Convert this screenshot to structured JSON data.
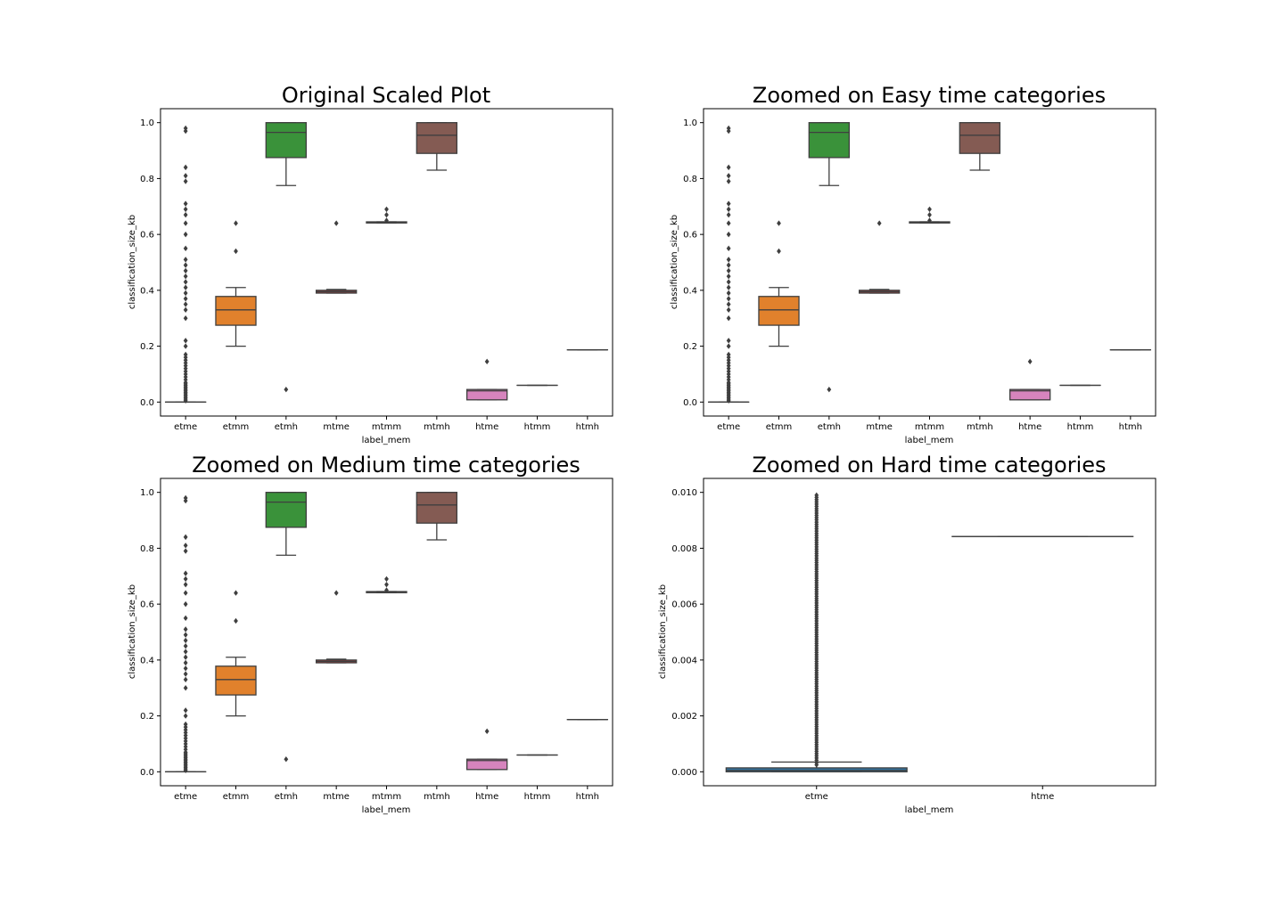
{
  "chart_data": [
    {
      "type": "box",
      "title": "Original Scaled Plot",
      "xlabel": "label_mem",
      "ylabel": "classification_size_kb",
      "ylim": [
        -0.05,
        1.05
      ],
      "yticks": [
        "0.0",
        "0.2",
        "0.4",
        "0.6",
        "0.8",
        "1.0"
      ],
      "categories": [
        "etme",
        "etmm",
        "etmh",
        "mtme",
        "mtmm",
        "mtmh",
        "htme",
        "htmm",
        "htmh"
      ],
      "boxes": [
        {
          "label": "etme",
          "color": "#3274a1",
          "q1": 0.0,
          "median": 0.0,
          "q3": 0.0,
          "whislo": 0.0,
          "whishi": 0.0,
          "fliers": [
            0.005,
            0.01,
            0.015,
            0.02,
            0.025,
            0.03,
            0.035,
            0.04,
            0.045,
            0.05,
            0.055,
            0.06,
            0.065,
            0.07,
            0.08,
            0.09,
            0.1,
            0.11,
            0.12,
            0.13,
            0.14,
            0.15,
            0.16,
            0.17,
            0.2,
            0.22,
            0.3,
            0.33,
            0.35,
            0.37,
            0.39,
            0.41,
            0.43,
            0.45,
            0.47,
            0.49,
            0.51,
            0.55,
            0.6,
            0.64,
            0.67,
            0.69,
            0.71,
            0.79,
            0.81,
            0.84,
            0.97,
            0.98
          ]
        },
        {
          "label": "etmm",
          "color": "#e1812c",
          "q1": 0.275,
          "median": 0.33,
          "q3": 0.378,
          "whislo": 0.2,
          "whishi": 0.41,
          "fliers": [
            0.54,
            0.64
          ]
        },
        {
          "label": "etmh",
          "color": "#3a923a",
          "q1": 0.875,
          "median": 0.965,
          "q3": 1.0,
          "whislo": 0.775,
          "whishi": 1.0,
          "fliers": [
            0.045
          ]
        },
        {
          "label": "mtme",
          "color": "#c03d3e",
          "q1": 0.39,
          "median": 0.395,
          "q3": 0.4,
          "whislo": 0.39,
          "whishi": 0.403,
          "fliers": [
            0.64
          ]
        },
        {
          "label": "mtmm",
          "color": "#9372b2",
          "q1": 0.641,
          "median": 0.643,
          "q3": 0.645,
          "whislo": 0.641,
          "whishi": 0.645,
          "fliers": [
            0.65,
            0.67,
            0.69
          ]
        },
        {
          "label": "mtmh",
          "color": "#845b53",
          "q1": 0.89,
          "median": 0.955,
          "q3": 1.0,
          "whislo": 0.83,
          "whishi": 1.0,
          "fliers": []
        },
        {
          "label": "htme",
          "color": "#d684bd",
          "q1": 0.008,
          "median": 0.04,
          "q3": 0.045,
          "whislo": 0.008,
          "whishi": 0.045,
          "fliers": [
            0.145
          ]
        },
        {
          "label": "htmm",
          "color": "#7f7f7f",
          "q1": 0.06,
          "median": 0.06,
          "q3": 0.06,
          "whislo": 0.06,
          "whishi": 0.06,
          "fliers": []
        },
        {
          "label": "htmh",
          "color": "#a9aa35",
          "q1": 0.187,
          "median": 0.187,
          "q3": 0.187,
          "whislo": 0.187,
          "whishi": 0.187,
          "fliers": []
        }
      ]
    },
    {
      "type": "box",
      "title": "Zoomed on Easy time categories",
      "xlabel": "label_mem",
      "ylabel": "classification_size_kb",
      "ylim": [
        -0.05,
        1.05
      ],
      "yticks": [
        "0.0",
        "0.2",
        "0.4",
        "0.6",
        "0.8",
        "1.0"
      ],
      "categories": [
        "etme",
        "etmm",
        "etmh",
        "mtme",
        "mtmm",
        "mtmh",
        "htme",
        "htmm",
        "htmh"
      ],
      "same_as": 0
    },
    {
      "type": "box",
      "title": "Zoomed on Medium time categories",
      "xlabel": "label_mem",
      "ylabel": "classification_size_kb",
      "ylim": [
        -0.05,
        1.05
      ],
      "yticks": [
        "0.0",
        "0.2",
        "0.4",
        "0.6",
        "0.8",
        "1.0"
      ],
      "categories": [
        "etme",
        "etmm",
        "etmh",
        "mtme",
        "mtmm",
        "mtmh",
        "htme",
        "htmm",
        "htmh"
      ],
      "same_as": 0
    },
    {
      "type": "box",
      "title": "Zoomed on Hard time categories",
      "xlabel": "label_mem",
      "ylabel": "classification_size_kb",
      "ylim": [
        -0.0005,
        0.0105
      ],
      "yticks": [
        "0.000",
        "0.002",
        "0.004",
        "0.006",
        "0.008",
        "0.010"
      ],
      "categories": [
        "etme",
        "htme"
      ],
      "boxes": [
        {
          "label": "etme",
          "color": "#3274a1",
          "q1": 0.0,
          "median": 5e-05,
          "q3": 0.00014,
          "whislo": 0.0,
          "whishi": 0.00035,
          "flier_range": [
            0.00025,
            0.0099
          ]
        },
        {
          "label": "htme",
          "color": "#e1812c",
          "q1": 0.00842,
          "median": 0.00842,
          "q3": 0.00842,
          "whislo": 0.00842,
          "whishi": 0.00842,
          "fliers": []
        }
      ]
    }
  ]
}
